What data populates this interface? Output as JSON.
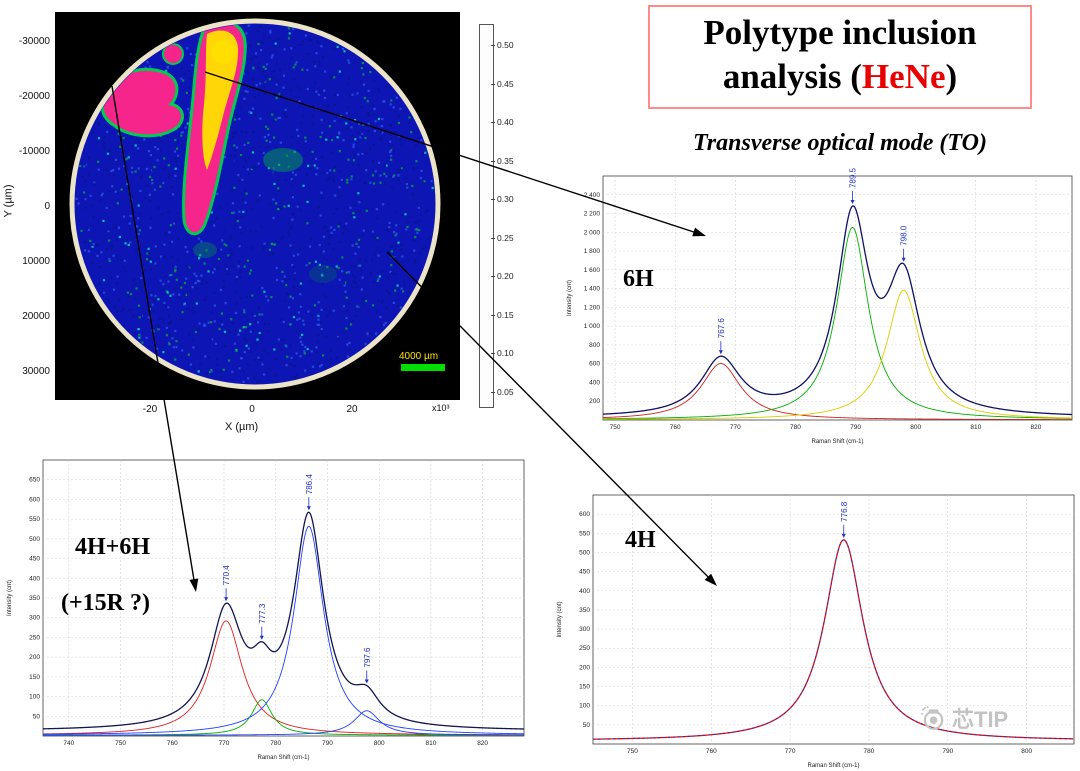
{
  "title": {
    "line1": "Polytype inclusion",
    "line2_prefix": "analysis (",
    "line2_red": "HeNe",
    "line2_suffix": ")"
  },
  "subtitle": "Transverse optical mode (TO)",
  "watermark": {
    "text": "芯TIP",
    "icon": "camera-icon"
  },
  "map": {
    "ylabel": "Y (µm)",
    "xlabel": "X (µm)",
    "y_ticks": [
      "-30000",
      "-20000",
      "-10000",
      "0",
      "10000",
      "20000",
      "30000"
    ],
    "x_ticks": [
      "-20",
      "0",
      "20"
    ],
    "x_multiplier": "x10³",
    "scalebar": "4000 µm",
    "colorbar_ticks": [
      "0.50",
      "0.45",
      "0.40",
      "0.35",
      "0.30",
      "0.25",
      "0.20",
      "0.15",
      "0.10",
      "0.05"
    ],
    "colors": {
      "background": "#000000",
      "wafer": "#0d16b5",
      "inclusion_pink": "#f5258c",
      "inclusion_yellow": "#ffdf00",
      "inclusion_green": "#00cc50",
      "rim": "#ece4c8",
      "scalebar_bar": "#00e000",
      "scalebar_text": "#ffe000"
    }
  },
  "chart_data": [
    {
      "type": "line",
      "name": "spectrum-6H",
      "label": "6H",
      "xlabel": "Raman Shift (cm-1)",
      "ylabel": "Intensity (cnt)",
      "xlim": [
        748,
        826
      ],
      "ylim": [
        0,
        2600
      ],
      "x_ticks": [
        750,
        760,
        770,
        780,
        790,
        800,
        810,
        820
      ],
      "y_ticks": [
        200,
        400,
        600,
        800,
        1000,
        1200,
        1400,
        1600,
        1800,
        2000,
        2200,
        2400
      ],
      "baseline": 20,
      "grid": true,
      "trace_color": "#101066",
      "overlay_color": null,
      "show_components": true,
      "peaks": [
        {
          "center": 767.6,
          "amplitude": 600,
          "width": 4.0,
          "color": "#d02020",
          "label": "767.6"
        },
        {
          "center": 789.5,
          "amplitude": 2050,
          "width": 3.2,
          "color": "#00b000",
          "label": "789.5"
        },
        {
          "center": 798.0,
          "amplitude": 1380,
          "width": 3.4,
          "color": "#ddcc00",
          "label": "798.0"
        }
      ]
    },
    {
      "type": "line",
      "name": "spectrum-4H-6H",
      "label": "4H+6H",
      "label2": "(+15R ?)",
      "xlabel": "Raman Shift (cm-1)",
      "ylabel": "Intensity (cnt)",
      "xlim": [
        735,
        828
      ],
      "ylim": [
        0,
        700
      ],
      "x_ticks": [
        740,
        750,
        760,
        770,
        780,
        790,
        800,
        810,
        820
      ],
      "y_ticks": [
        50,
        100,
        150,
        200,
        250,
        300,
        350,
        400,
        450,
        500,
        550,
        600,
        650
      ],
      "baseline": 12,
      "grid": true,
      "trace_color": "#141450",
      "overlay_color": null,
      "show_components": true,
      "peaks": [
        {
          "center": 770.4,
          "amplitude": 290,
          "width": 3.8,
          "color": "#e02020",
          "label": "770.4"
        },
        {
          "center": 777.3,
          "amplitude": 90,
          "width": 2.4,
          "color": "#00b000",
          "label": "777.3"
        },
        {
          "center": 786.4,
          "amplitude": 530,
          "width": 3.5,
          "color": "#2040ff",
          "label": "786.4"
        },
        {
          "center": 797.6,
          "amplitude": 62,
          "width": 3.0,
          "color": "#2040ff",
          "label": "797.6"
        }
      ]
    },
    {
      "type": "line",
      "name": "spectrum-4H",
      "label": "4H",
      "xlabel": "Raman Shift (cm-1)",
      "ylabel": "Intensity (cnt)",
      "xlim": [
        745,
        806
      ],
      "ylim": [
        0,
        650
      ],
      "x_ticks": [
        750,
        760,
        770,
        780,
        790,
        800
      ],
      "y_ticks": [
        50,
        100,
        150,
        200,
        250,
        300,
        350,
        400,
        450,
        500,
        550,
        600
      ],
      "baseline": 8,
      "grid": true,
      "trace_color": "#e01010",
      "overlay_color": "#2030c0",
      "show_components": false,
      "peaks": [
        {
          "center": 776.8,
          "amplitude": 525,
          "width": 3.0,
          "color": "#e01010",
          "label": "776.8"
        }
      ]
    }
  ],
  "annotations": {
    "peak_label_color": "#2030c8",
    "arrow_color": "#000000"
  }
}
